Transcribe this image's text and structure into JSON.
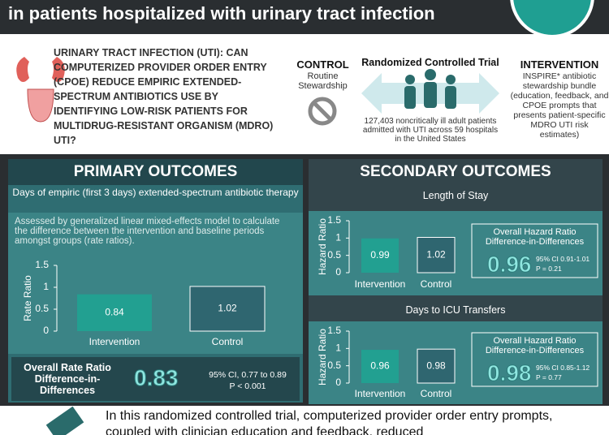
{
  "header": {
    "title": "in patients hospitalized with urinary tract infection"
  },
  "question": "URINARY TRACT INFECTION (UTI): CAN COMPUTERIZED PROVIDER ORDER ENTRY (CPOE) REDUCE EMPIRIC EXTENDED-SPECTRUM ANTIBIOTICS USE BY IDENTIFYING LOW-RISK PATIENTS FOR MULTIDRUG-RESISTANT ORGANISM (MDRO) UTI?",
  "design": {
    "control_title": "CONTROL",
    "control_text": "Routine Stewardship",
    "trial_title": "Randomized Controlled Trial",
    "trial_text": "127,403 noncritically ill adult patients admitted with UTI across 59 hospitals in the United States",
    "intervention_title": "INTERVENTION",
    "intervention_text": "INSPIRE* antibiotic stewardship bundle (education, feedback, and CPOE prompts that presents patient-specific MDRO UTI risk estimates)"
  },
  "primary": {
    "heading": "PRIMARY OUTCOMES",
    "note": "Assessed by generalized linear mixed-effects model to calculate the difference between the intervention and baseline periods amongst groups (rate ratios).",
    "summary": {
      "label": "Overall Rate Ratio Difference-in-Differences",
      "value": 0.83,
      "ci": "95% CI, 0.77 to 0.89",
      "p": "P < 0.001"
    }
  },
  "secondary": {
    "heading": "SECONDARY OUTCOMES",
    "summaries": [
      {
        "label": "Overall Hazard Ratio Difference-in-Differences",
        "value": 0.96,
        "ci": "95% CI 0.91-1.01",
        "p": "P = 0.21"
      },
      {
        "label": "Overall Hazard Ratio Difference-in-Differences",
        "value": 0.98,
        "ci": "95% CI 0.85-1.12",
        "p": "P = 0.77"
      }
    ]
  },
  "chart_data": [
    {
      "type": "bar",
      "title": "Days of empiric (first 3 days) extended-spectrum antibiotic therapy",
      "ylabel": "Rate Ratio",
      "categories": [
        "Intervention",
        "Control"
      ],
      "values": [
        0.84,
        1.02
      ],
      "colors": [
        "#22a091",
        "#2f6670"
      ],
      "ylim": [
        0,
        1.5
      ],
      "yticks": [
        0,
        0.5,
        1,
        1.5
      ]
    },
    {
      "type": "bar",
      "title": "Length of Stay",
      "ylabel": "Hazard Ratio",
      "categories": [
        "Intervention",
        "Control"
      ],
      "values": [
        0.99,
        1.02
      ],
      "colors": [
        "#22a091",
        "#2f6670"
      ],
      "ylim": [
        0,
        1.5
      ],
      "yticks": [
        0,
        0.5,
        1,
        1.5
      ]
    },
    {
      "type": "bar",
      "title": "Days to ICU Transfers",
      "ylabel": "Hazard Ratio",
      "categories": [
        "Intervention",
        "Control"
      ],
      "values": [
        0.96,
        0.98
      ],
      "colors": [
        "#22a091",
        "#2f6670"
      ],
      "ylim": [
        0,
        1.5
      ],
      "yticks": [
        0,
        0.5,
        1,
        1.5
      ]
    }
  ],
  "conclusion": "In this randomized controlled trial, computerized provider order entry prompts, coupled with clinician education and feedback, reduced"
}
